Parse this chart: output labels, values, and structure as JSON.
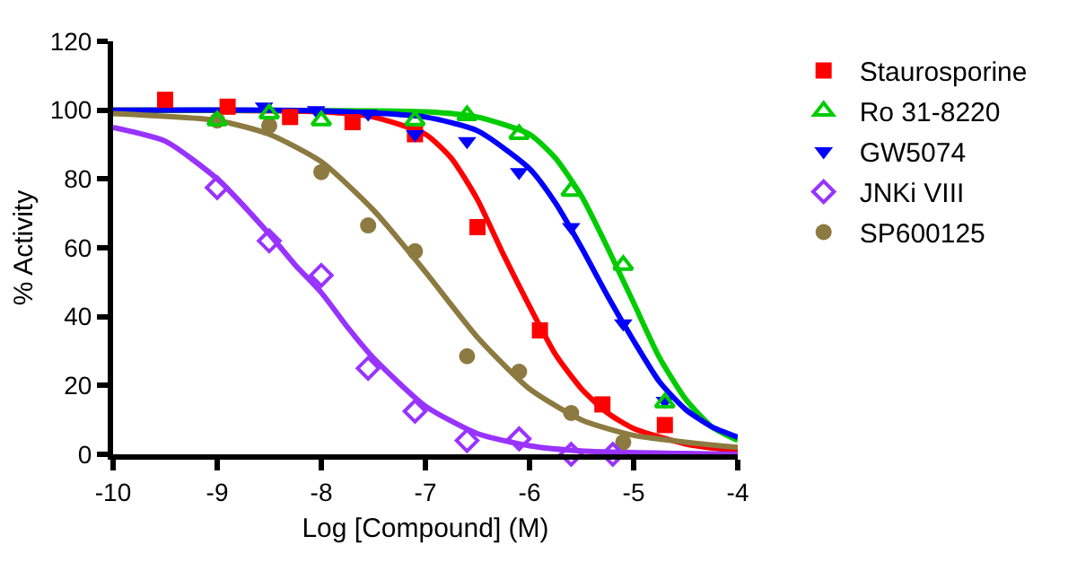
{
  "chart_data": {
    "type": "scatter",
    "xlabel": "Log [Compound] (M)",
    "ylabel": "% Activity",
    "xlim": [
      -10,
      -4
    ],
    "xticks": [
      -10,
      -9,
      -8,
      -7,
      -6,
      -5,
      -4
    ],
    "ylim": [
      0,
      120
    ],
    "yticks": [
      0,
      20,
      40,
      60,
      80,
      100,
      120
    ],
    "grid": false,
    "legend": "right",
    "series": [
      {
        "name": "Staurosporine",
        "color": "#ff0000",
        "marker": "square",
        "x": [
          -9.5,
          -8.9,
          -8.3,
          -7.7,
          -7.1,
          -6.5,
          -5.9,
          -5.3,
          -4.7
        ],
        "values": [
          103,
          101,
          98,
          96.5,
          93,
          66,
          36,
          14.5,
          8.5
        ]
      },
      {
        "name": "Ro 31-8220",
        "color": "#00cc00",
        "marker": "triangle",
        "x": [
          -9.0,
          -8.5,
          -8.0,
          -7.1,
          -6.6,
          -6.1,
          -5.6,
          -5.1,
          -4.7
        ],
        "values": [
          97,
          99,
          97,
          97,
          98.5,
          93,
          76.5,
          55,
          15
        ]
      },
      {
        "name": "GW5074",
        "color": "#0000ff",
        "marker": "triangle",
        "x": [
          -8.55,
          -8.05,
          -7.55,
          -7.1,
          -6.6,
          -6.1,
          -5.6,
          -5.1,
          -4.7
        ],
        "values": [
          101,
          100,
          99,
          93,
          91,
          82,
          66,
          38,
          15.5
        ]
      },
      {
        "name": "JNKi VIII",
        "color": "#9933ff",
        "marker": "diamond",
        "x": [
          -9.0,
          -8.5,
          -8.0,
          -7.55,
          -7.1,
          -6.6,
          -6.1,
          -5.6,
          -5.2
        ],
        "values": [
          77.5,
          62,
          52,
          25,
          12.5,
          4,
          4.5,
          0,
          0
        ]
      },
      {
        "name": "SP600125",
        "color": "#8c7a40",
        "marker": "circle",
        "x": [
          -9.0,
          -8.5,
          -8.0,
          -7.55,
          -7.1,
          -6.6,
          -6.1,
          -5.6,
          -5.1
        ],
        "values": [
          97,
          95.5,
          82,
          66.5,
          59,
          28.5,
          24,
          12,
          3.5
        ]
      },
      {
        "type": "line",
        "color": "#ff0000",
        "marker": "none",
        "x": [
          -10,
          -8,
          -7.5,
          -7,
          -6.75,
          -6.5,
          -6.25,
          -6,
          -5.75,
          -5.5,
          -5.25,
          -5,
          -4.5,
          -4
        ],
        "values": [
          100,
          99.5,
          98,
          93,
          86,
          74,
          58,
          43,
          29,
          19,
          12,
          7.5,
          3,
          1
        ]
      },
      {
        "type": "line",
        "color": "#00cc00",
        "marker": "none",
        "x": [
          -10,
          -7,
          -6.5,
          -6,
          -5.75,
          -5.5,
          -5.25,
          -5,
          -4.75,
          -4.5,
          -4.25,
          -4
        ],
        "values": [
          100,
          99.5,
          98,
          93,
          86,
          75,
          60,
          44,
          28,
          16,
          8,
          4
        ]
      },
      {
        "type": "line",
        "color": "#0000ff",
        "marker": "none",
        "x": [
          -10,
          -8,
          -7,
          -6.5,
          -6,
          -5.75,
          -5.5,
          -5.25,
          -5,
          -4.75,
          -4.5,
          -4.25,
          -4
        ],
        "values": [
          100,
          99.8,
          98,
          94,
          83,
          73,
          60,
          46,
          33,
          21,
          13,
          8,
          5
        ]
      },
      {
        "type": "line",
        "color": "#9933ff",
        "marker": "none",
        "x": [
          -10,
          -9.5,
          -9,
          -8.5,
          -8.25,
          -8,
          -7.75,
          -7.5,
          -7,
          -6.5,
          -6,
          -5.5,
          -4
        ],
        "values": [
          95,
          91,
          80,
          64,
          55,
          47,
          37,
          28,
          14,
          6,
          2.5,
          1,
          0
        ]
      },
      {
        "type": "line",
        "color": "#8c7a40",
        "marker": "none",
        "x": [
          -10,
          -9,
          -8.5,
          -8,
          -7.5,
          -7,
          -6.5,
          -6,
          -5.5,
          -5,
          -4
        ],
        "values": [
          99,
          97,
          93,
          85,
          71,
          53,
          34,
          19,
          10,
          5.5,
          2
        ]
      }
    ]
  }
}
